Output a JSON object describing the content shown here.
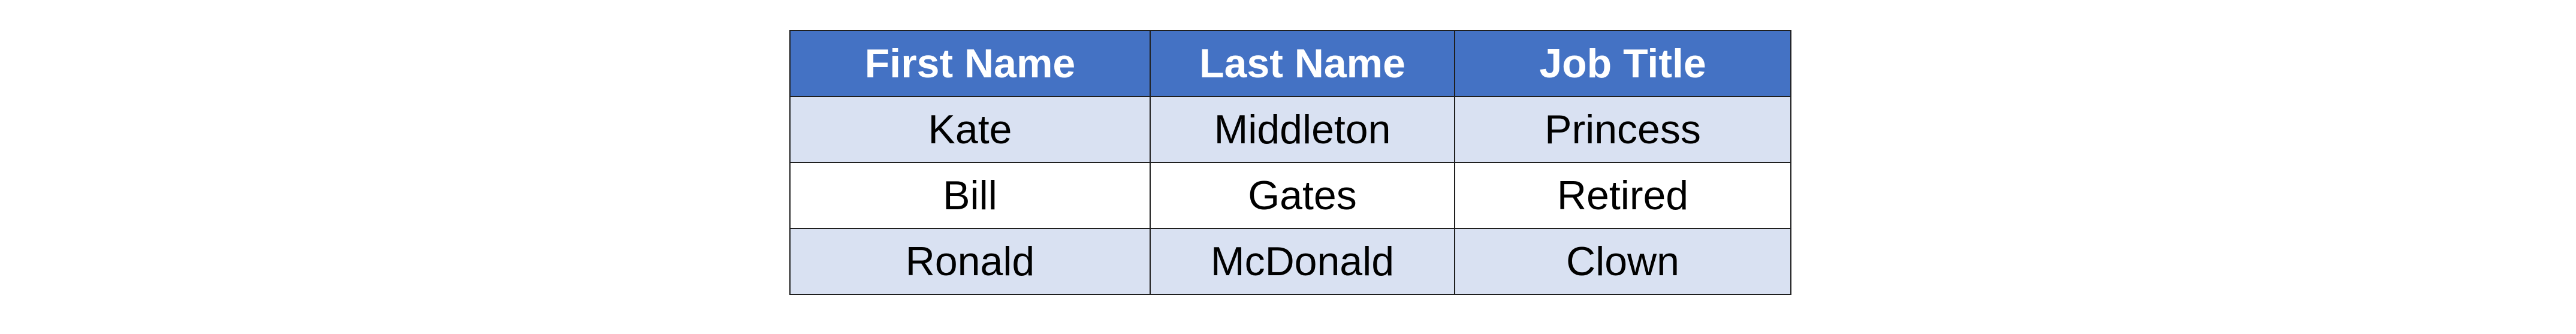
{
  "table": {
    "headers": [
      "First Name",
      "Last Name",
      "Job Title"
    ],
    "rows": [
      [
        "Kate",
        "Middleton",
        "Princess"
      ],
      [
        "Bill",
        "Gates",
        "Retired"
      ],
      [
        "Ronald",
        "McDonald",
        "Clown"
      ]
    ]
  },
  "colors": {
    "header_bg": "#4472c4",
    "header_text": "#ffffff",
    "band_bg": "#d9e1f2",
    "plain_bg": "#ffffff"
  }
}
